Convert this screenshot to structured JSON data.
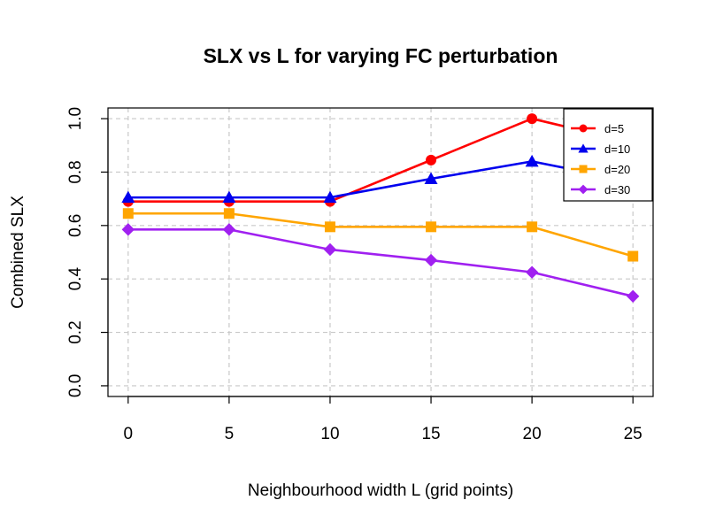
{
  "chart_data": {
    "type": "line",
    "title": "SLX vs L for varying FC perturbation",
    "xlabel": "Neighbourhood width L (grid points)",
    "ylabel": "Combined SLX",
    "x": [
      0,
      5,
      10,
      15,
      20,
      25
    ],
    "xlim": [
      -1,
      26
    ],
    "ylim": [
      -0.04,
      1.04
    ],
    "xticks": [
      0,
      5,
      10,
      15,
      20,
      25
    ],
    "yticks": [
      0.0,
      0.2,
      0.4,
      0.6,
      0.8,
      1.0
    ],
    "xtick_labels": [
      "0",
      "5",
      "10",
      "15",
      "20",
      "25"
    ],
    "ytick_labels": [
      "0.0",
      "0.2",
      "0.4",
      "0.6",
      "0.8",
      "1.0"
    ],
    "grid": true,
    "legend_position": "top-right",
    "series": [
      {
        "name": "d=5",
        "color": "#ff0000",
        "marker": "circle",
        "values": [
          0.69,
          0.69,
          0.69,
          0.845,
          1.0,
          0.91
        ]
      },
      {
        "name": "d=10",
        "color": "#0000ee",
        "marker": "triangle",
        "values": [
          0.705,
          0.705,
          0.705,
          0.775,
          0.84,
          0.765
        ]
      },
      {
        "name": "d=20",
        "color": "#ffa500",
        "marker": "square",
        "values": [
          0.645,
          0.645,
          0.595,
          0.595,
          0.595,
          0.485
        ]
      },
      {
        "name": "d=30",
        "color": "#a020f0",
        "marker": "diamond",
        "values": [
          0.585,
          0.585,
          0.51,
          0.47,
          0.425,
          0.335
        ]
      }
    ]
  }
}
